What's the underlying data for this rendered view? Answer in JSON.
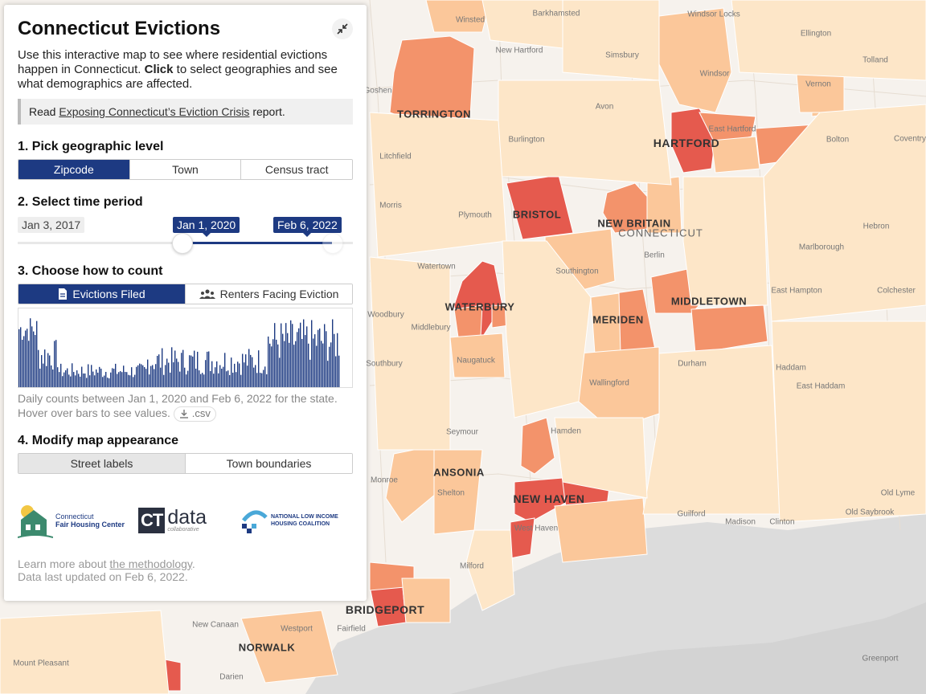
{
  "panel": {
    "title": "Connecticut Evictions",
    "intro_1": "Use this interactive map to see where residential evictions happen in Connecticut. ",
    "intro_bold": "Click",
    "intro_2": " to select geographies and see what demographics are affected.",
    "report_prefix": "Read ",
    "report_link": "Exposing Connecticut’s Eviction Crisis",
    "report_suffix": " report."
  },
  "step1": {
    "title": "1. Pick geographic level",
    "options": [
      "Zipcode",
      "Town",
      "Census tract"
    ],
    "selected": "Zipcode"
  },
  "step2": {
    "title": "2. Select time period",
    "min_date": "Jan 3, 2017",
    "start_date": "Jan 1, 2020",
    "end_date": "Feb 6, 2022",
    "start_fraction": 0.505,
    "end_fraction": 0.97
  },
  "step3": {
    "title": "3. Choose how to count",
    "options": [
      "Evictions Filed",
      "Renters Facing Eviction"
    ],
    "selected": "Evictions Filed",
    "caption_1": "Daily counts between Jan 1, 2020 and Feb 6, 2022 for the state.",
    "caption_2": "Hover over bars to see values.",
    "csv_label": ".csv"
  },
  "step4": {
    "title": "4. Modify map appearance",
    "options": [
      "Street labels",
      "Town boundaries"
    ],
    "selected": "Street labels"
  },
  "logos": {
    "cfhc_line1": "Connecticut",
    "cfhc_line2": "Fair Housing Center",
    "ctdata_main": "data",
    "ctdata_ct": "CT",
    "ctdata_sub": "collaborative",
    "nlihc_line1": "NATIONAL LOW INCOME",
    "nlihc_line2": "HOUSING COALITION"
  },
  "footer": {
    "learn_prefix": "Learn more about ",
    "learn_link": "the methodology",
    "learn_suffix": ".",
    "updated": "Data last updated on Feb 6, 2022."
  },
  "colors": {
    "accent": "#1d3a82",
    "level_low": "#fde6c8",
    "level_mid": "#fbc79a",
    "level_high": "#f3936b",
    "level_top": "#e55a4e"
  },
  "map_labels": {
    "cities": [
      "HARTFORD",
      "NEW HAVEN",
      "BRIDGEPORT",
      "WATERBURY",
      "BRISTOL",
      "NEW BRITAIN",
      "MERIDEN",
      "MIDDLETOWN",
      "TORRINGTON",
      "ANSONIA",
      "NORWALK"
    ],
    "state": "CONNECTICUT",
    "towns": [
      "Winsted",
      "Barkhamsted",
      "Windsor Locks",
      "Ellington",
      "New Hartford",
      "Simsbury",
      "Tolland",
      "Windsor",
      "Vernon",
      "Goshen",
      "Avon",
      "East Hartford",
      "Litchfield",
      "Burlington",
      "Bolton",
      "Coventry",
      "Morris",
      "Plymouth",
      "Hebron",
      "Berlin",
      "Marlborough",
      "Watertown",
      "Southington",
      "East Hampton",
      "Colchester",
      "Woodbury",
      "Middlebury",
      "Naugatuck",
      "Southbury",
      "Wallingford",
      "Durham",
      "Haddam",
      "East Haddam",
      "Seymour",
      "Hamden",
      "Monroe",
      "Shelton",
      "Guilford",
      "Madison",
      "Clinton",
      "Old Saybrook",
      "Old Lyme",
      "West Haven",
      "Milford",
      "Fairfield",
      "Westport",
      "New Canaan",
      "Darien",
      "Mount Pleasant",
      "Greenport"
    ]
  },
  "histogram": {
    "description_bars": 110
  }
}
